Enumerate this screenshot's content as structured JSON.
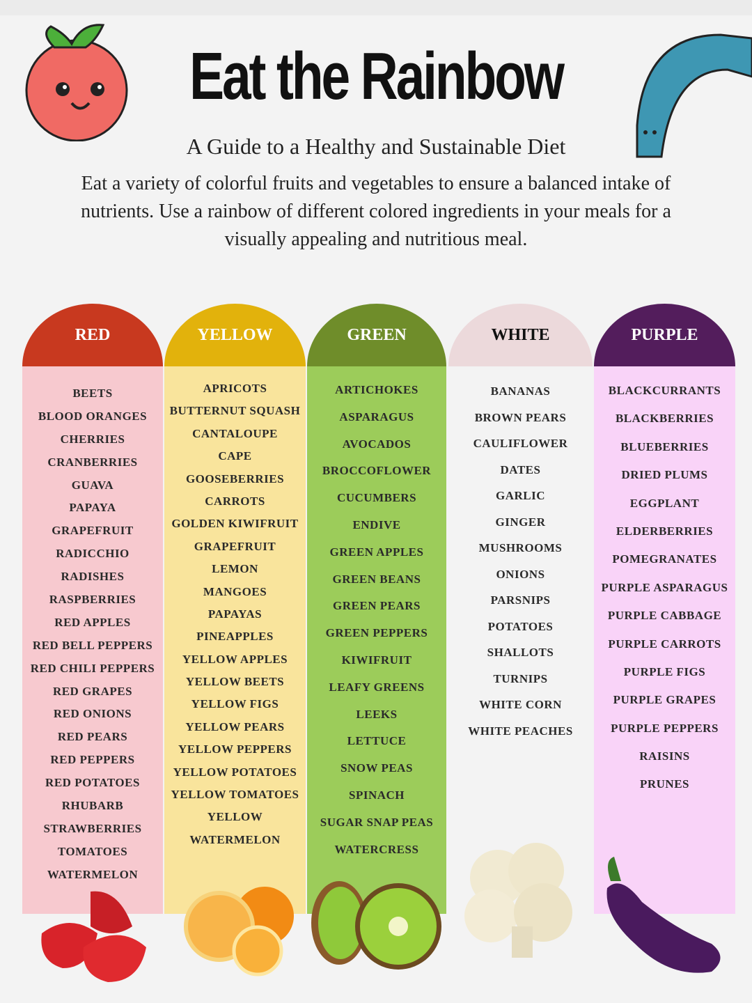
{
  "header": {
    "title": "Eat the Rainbow",
    "subtitle": "A Guide to a Healthy and Sustainable Diet",
    "intro": "Eat a variety of colorful fruits and vegetables to ensure a balanced intake of nutrients. Use a rainbow of different colored ingredients in your meals for a visually appealing and nutritious meal."
  },
  "columns": [
    {
      "label": "RED",
      "header_color": "#c8391f",
      "body_color": "#f7c9cf",
      "label_color": "#ffffff",
      "items": [
        "BEETS",
        "BLOOD ORANGES",
        "CHERRIES",
        "CRANBERRIES",
        "GUAVA",
        "PAPAYA",
        "GRAPEFRUIT",
        "RADICCHIO",
        "RADISHES",
        "RASPBERRIES",
        "RED APPLES",
        "RED BELL PEPPERS",
        "RED CHILI PEPPERS",
        "RED GRAPES",
        "RED ONIONS",
        "RED PEARS",
        "RED PEPPERS",
        "RED POTATOES",
        "RHUBARB",
        "STRAWBERRIES",
        "TOMATOES",
        "WATERMELON"
      ]
    },
    {
      "label": "YELLOW",
      "header_color": "#e2b20c",
      "body_color": "#f9e49c",
      "label_color": "#ffffff",
      "items": [
        "APRICOTS",
        "BUTTERNUT SQUASH",
        "CANTALOUPE",
        "CAPE",
        "GOOSEBERRIES",
        "CARROTS",
        "GOLDEN KIWIFRUIT",
        "GRAPEFRUIT",
        "LEMON",
        "MANGOES",
        "PAPAYAS",
        "PINEAPPLES",
        "YELLOW APPLES",
        "YELLOW BEETS",
        "YELLOW FIGS",
        "YELLOW PEARS",
        "YELLOW PEPPERS",
        "YELLOW POTATOES",
        "YELLOW TOMATOES",
        "YELLOW",
        "WATERMELON"
      ]
    },
    {
      "label": "GREEN",
      "header_color": "#6f8d2a",
      "body_color": "#9ccc5a",
      "label_color": "#ffffff",
      "items": [
        "ARTICHOKES",
        "ASPARAGUS",
        "AVOCADOS",
        "BROCCOFLOWER",
        "CUCUMBERS",
        "ENDIVE",
        "GREEN APPLES",
        "GREEN BEANS",
        "GREEN PEARS",
        "GREEN PEPPERS",
        "KIWIFRUIT",
        "LEAFY GREENS",
        "LEEKS",
        "LETTUCE",
        "SNOW PEAS",
        "SPINACH",
        "SUGAR SNAP PEAS",
        "WATERCRESS"
      ]
    },
    {
      "label": "WHITE",
      "header_color": "#ecd9db",
      "body_color": "#f3f3f3",
      "label_color": "#111111",
      "items": [
        "BANANAS",
        "BROWN PEARS",
        "CAULIFLOWER",
        "DATES",
        "GARLIC",
        "GINGER",
        "MUSHROOMS",
        "ONIONS",
        "PARSNIPS",
        "POTATOES",
        "SHALLOTS",
        "TURNIPS",
        "WHITE CORN",
        "WHITE PEACHES"
      ]
    },
    {
      "label": "PURPLE",
      "header_color": "#531d5c",
      "body_color": "#f9d3f8",
      "label_color": "#ffffff",
      "items": [
        "BLACKCURRANTS",
        "BLACKBERRIES",
        "BLUEBERRIES",
        "DRIED PLUMS",
        "EGGPLANT",
        "ELDERBERRIES",
        "POMEGRANATES",
        "PURPLE ASPARAGUS",
        "PURPLE CABBAGE",
        "PURPLE CARROTS",
        "PURPLE FIGS",
        "PURPLE GRAPES",
        "PURPLE PEPPERS",
        "RAISINS",
        "PRUNES"
      ]
    }
  ],
  "illustrations": [
    "tomato-mascot",
    "worm-mascot",
    "strawberries",
    "oranges",
    "kiwis",
    "cauliflower",
    "eggplant"
  ]
}
